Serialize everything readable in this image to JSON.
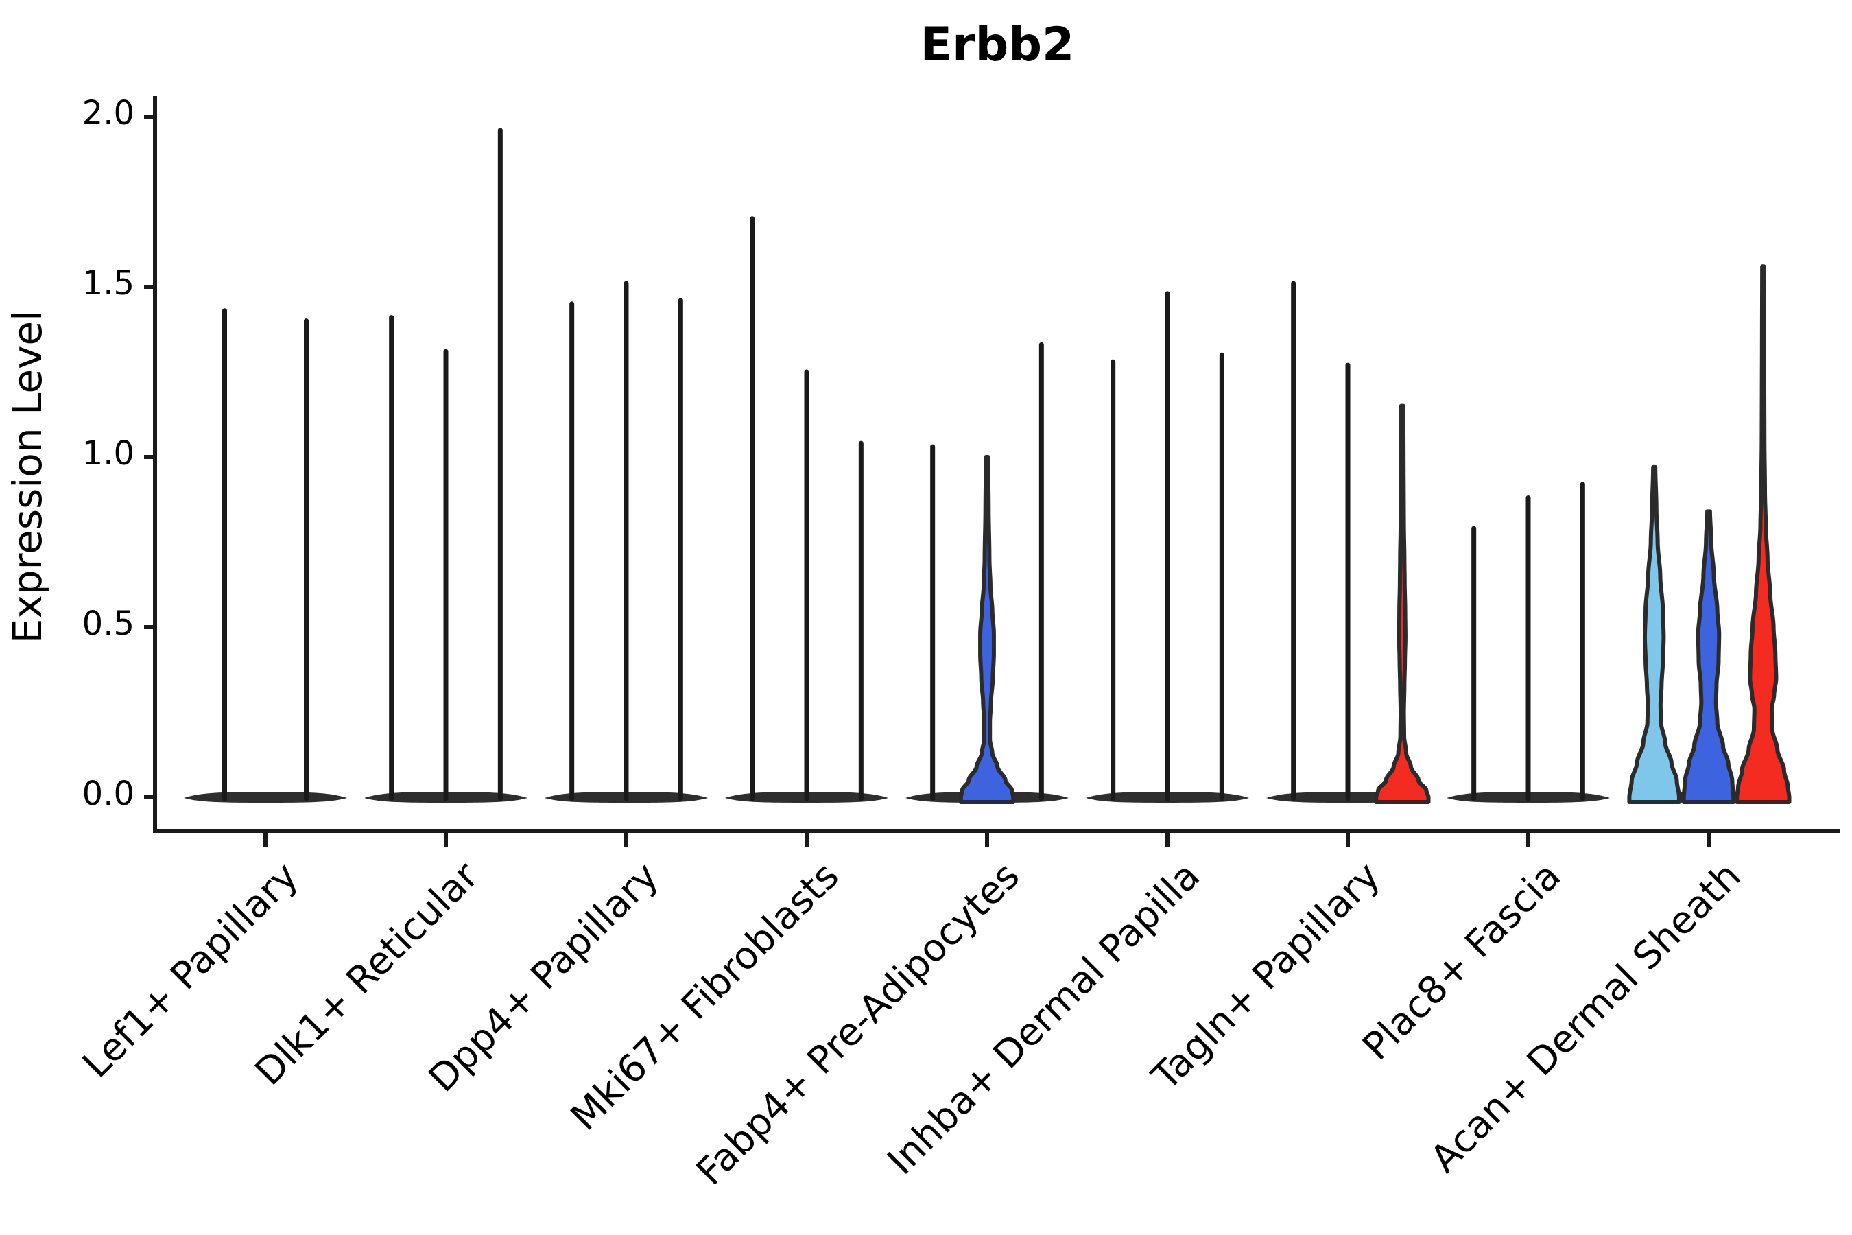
{
  "title": "Erbb2",
  "y_axis": {
    "label": "Expression Level",
    "ticks": [
      "0.0",
      "0.5",
      "1.0",
      "1.5",
      "2.0"
    ],
    "tick_values": [
      0.0,
      0.5,
      1.0,
      1.5,
      2.0
    ]
  },
  "colors": {
    "background": "#FFFFFF",
    "skyblue": "#7EC6EA",
    "blue": "#3D63DE",
    "red": "#F32B20",
    "outline": "#2B2B2B",
    "ink": "#111111"
  },
  "chart_data": {
    "type": "violin",
    "title": "Erbb2",
    "xlabel": "",
    "ylabel": "Expression Level",
    "ylim": [
      0,
      2.07
    ],
    "yticks": [
      0.0,
      0.5,
      1.0,
      1.5,
      2.0
    ],
    "grid": false,
    "legend": "none",
    "description": "Split violin plot of Erbb2 expression per fibroblast cluster; most violins collapse to a flat base at 0 with a thin spike to the maximum expressed value. Violins with visible density bodies are colored.",
    "categories": [
      "Lef1+ Papillary",
      "Dlk1+ Reticular",
      "Dpp4+ Papillary",
      "Mki67+ Fibroblasts",
      "Fabp4+ Pre-Adipocytes",
      "Inhba+ Dermal Papilla",
      "Tagln+ Papillary",
      "Plac8+ Fascia",
      "Acan+ Dermal Sheath"
    ],
    "groups": [
      {
        "category": "Lef1+ Papillary",
        "violins": [
          {
            "max": 1.43,
            "color": null
          },
          {
            "max": 1.4,
            "color": null
          }
        ]
      },
      {
        "category": "Dlk1+ Reticular",
        "violins": [
          {
            "max": 1.41,
            "color": null
          },
          {
            "max": 1.31,
            "color": null
          },
          {
            "max": 1.96,
            "color": null
          }
        ]
      },
      {
        "category": "Dpp4+ Papillary",
        "violins": [
          {
            "max": 1.45,
            "color": null
          },
          {
            "max": 1.51,
            "color": null
          },
          {
            "max": 1.46,
            "color": null
          }
        ]
      },
      {
        "category": "Mki67+ Fibroblasts",
        "violins": [
          {
            "max": 1.7,
            "color": null
          },
          {
            "max": 1.25,
            "color": null
          },
          {
            "max": 1.04,
            "color": null
          }
        ]
      },
      {
        "category": "Fabp4+ Pre-Adipocytes",
        "violins": [
          {
            "max": 1.03,
            "color": null
          },
          {
            "max": 1.0,
            "color": "blue",
            "profile": [
              [
                1.0,
                0.04
              ],
              [
                0.85,
                0.06
              ],
              [
                0.7,
                0.09
              ],
              [
                0.62,
                0.13
              ],
              [
                0.55,
                0.2
              ],
              [
                0.48,
                0.26
              ],
              [
                0.42,
                0.26
              ],
              [
                0.35,
                0.22
              ],
              [
                0.28,
                0.15
              ],
              [
                0.22,
                0.11
              ],
              [
                0.17,
                0.11
              ],
              [
                0.13,
                0.2
              ],
              [
                0.09,
                0.4
              ],
              [
                0.05,
                0.7
              ],
              [
                0.02,
                0.95
              ],
              [
                0.0,
                1.0
              ]
            ]
          },
          {
            "max": 1.33,
            "color": null
          }
        ]
      },
      {
        "category": "Inhba+ Dermal Papilla",
        "violins": [
          {
            "max": 1.28,
            "color": null
          },
          {
            "max": 1.48,
            "color": null
          },
          {
            "max": 1.3,
            "color": null
          }
        ]
      },
      {
        "category": "Tagln+ Papillary",
        "violins": [
          {
            "max": 1.51,
            "color": null
          },
          {
            "max": 1.27,
            "color": null
          },
          {
            "max": 1.15,
            "color": "red",
            "profile": [
              [
                1.15,
                0.04
              ],
              [
                0.95,
                0.05
              ],
              [
                0.8,
                0.06
              ],
              [
                0.7,
                0.08
              ],
              [
                0.63,
                0.09
              ],
              [
                0.55,
                0.11
              ],
              [
                0.47,
                0.12
              ],
              [
                0.4,
                0.1
              ],
              [
                0.33,
                0.08
              ],
              [
                0.25,
                0.06
              ],
              [
                0.18,
                0.07
              ],
              [
                0.13,
                0.15
              ],
              [
                0.09,
                0.33
              ],
              [
                0.05,
                0.62
              ],
              [
                0.02,
                0.92
              ],
              [
                0.0,
                1.0
              ]
            ]
          }
        ]
      },
      {
        "category": "Plac8+ Fascia",
        "violins": [
          {
            "max": 0.79,
            "color": null
          },
          {
            "max": 0.88,
            "color": null
          },
          {
            "max": 0.92,
            "color": null
          }
        ]
      },
      {
        "category": "Acan+ Dermal Sheath",
        "violins": [
          {
            "max": 0.97,
            "color": "skyblue",
            "profile": [
              [
                0.97,
                0.04
              ],
              [
                0.85,
                0.08
              ],
              [
                0.75,
                0.13
              ],
              [
                0.65,
                0.23
              ],
              [
                0.55,
                0.33
              ],
              [
                0.47,
                0.36
              ],
              [
                0.4,
                0.33
              ],
              [
                0.33,
                0.28
              ],
              [
                0.27,
                0.24
              ],
              [
                0.22,
                0.26
              ],
              [
                0.16,
                0.42
              ],
              [
                0.1,
                0.66
              ],
              [
                0.05,
                0.86
              ],
              [
                0.0,
                0.95
              ]
            ]
          },
          {
            "max": 0.84,
            "color": "blue",
            "profile": [
              [
                0.84,
                0.05
              ],
              [
                0.75,
                0.1
              ],
              [
                0.65,
                0.2
              ],
              [
                0.55,
                0.33
              ],
              [
                0.48,
                0.4
              ],
              [
                0.4,
                0.38
              ],
              [
                0.33,
                0.3
              ],
              [
                0.28,
                0.28
              ],
              [
                0.22,
                0.33
              ],
              [
                0.15,
                0.55
              ],
              [
                0.1,
                0.75
              ],
              [
                0.05,
                0.9
              ],
              [
                0.0,
                0.95
              ]
            ]
          },
          {
            "max": 1.56,
            "color": "red",
            "profile": [
              [
                1.56,
                0.03
              ],
              [
                1.3,
                0.04
              ],
              [
                1.05,
                0.05
              ],
              [
                0.9,
                0.07
              ],
              [
                0.8,
                0.1
              ],
              [
                0.7,
                0.17
              ],
              [
                0.6,
                0.27
              ],
              [
                0.5,
                0.4
              ],
              [
                0.42,
                0.47
              ],
              [
                0.35,
                0.5
              ],
              [
                0.3,
                0.42
              ],
              [
                0.26,
                0.33
              ],
              [
                0.2,
                0.35
              ],
              [
                0.14,
                0.55
              ],
              [
                0.08,
                0.8
              ],
              [
                0.03,
                0.95
              ],
              [
                0.0,
                1.0
              ]
            ]
          }
        ]
      }
    ]
  }
}
